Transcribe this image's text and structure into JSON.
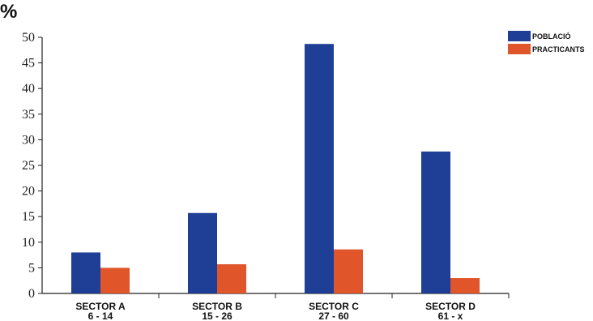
{
  "chart_data": {
    "type": "bar",
    "title": "",
    "unit_label": "%",
    "categories": [
      {
        "line1": "SECTOR A",
        "line2": "6 - 14"
      },
      {
        "line1": "SECTOR B",
        "line2": "15 - 26"
      },
      {
        "line1": "SECTOR C",
        "line2": "27 - 60"
      },
      {
        "line1": "SECTOR D",
        "line2": "61 - x"
      }
    ],
    "series": [
      {
        "name": "POBLACIÓ",
        "color": "#1f3f96",
        "values": [
          8,
          15.7,
          48.7,
          27.7
        ]
      },
      {
        "name": "PRACTICANTS",
        "color": "#e0552a",
        "values": [
          5,
          5.7,
          8.6,
          3
        ]
      }
    ],
    "ylim": [
      0,
      50
    ],
    "yticks": [
      0,
      5,
      10,
      15,
      20,
      25,
      30,
      35,
      40,
      45,
      50
    ],
    "grid": false,
    "legend_position": "top-right"
  }
}
